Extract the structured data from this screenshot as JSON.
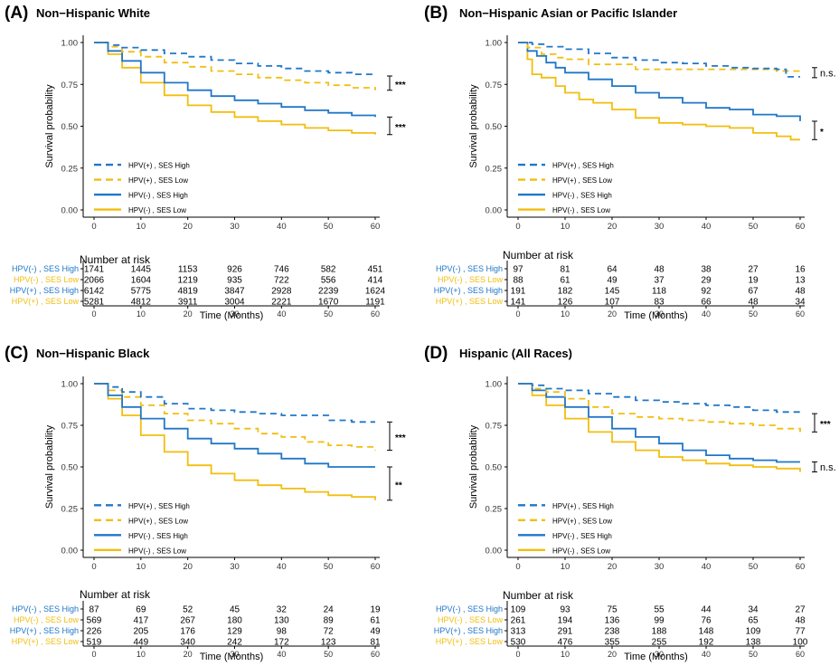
{
  "colors": {
    "ses_high": "#2077C8",
    "ses_low": "#F2BE0E",
    "axis": "#000000",
    "text": "#000000"
  },
  "chart_data": [
    {
      "type": "line",
      "panel_label": "(A)",
      "title": "Non−Hispanic White",
      "xlabel": "Time (Months)",
      "ylabel": "Survival probability",
      "xlim": [
        0,
        60
      ],
      "ylim": [
        0,
        1
      ],
      "x_ticks": [
        "0",
        "10",
        "20",
        "30",
        "40",
        "50",
        "60"
      ],
      "y_ticks": [
        "0.00",
        "0.25",
        "0.50",
        "0.75",
        "1.00"
      ],
      "series": [
        {
          "name": "HPV(+) , SES High",
          "color": "#2077C8",
          "dash": true,
          "x": [
            0,
            3,
            6,
            10,
            15,
            20,
            25,
            30,
            35,
            40,
            45,
            50,
            55,
            60
          ],
          "y": [
            1.0,
            0.985,
            0.97,
            0.955,
            0.935,
            0.915,
            0.895,
            0.875,
            0.86,
            0.845,
            0.83,
            0.82,
            0.81,
            0.8
          ]
        },
        {
          "name": "HPV(+) , SES Low",
          "color": "#F2BE0E",
          "dash": true,
          "x": [
            0,
            3,
            6,
            10,
            15,
            20,
            25,
            30,
            35,
            40,
            45,
            50,
            55,
            60
          ],
          "y": [
            1.0,
            0.975,
            0.945,
            0.915,
            0.88,
            0.855,
            0.83,
            0.81,
            0.79,
            0.775,
            0.76,
            0.745,
            0.73,
            0.715
          ]
        },
        {
          "name": "HPV(-) , SES High",
          "color": "#2077C8",
          "dash": false,
          "x": [
            0,
            3,
            6,
            10,
            15,
            20,
            25,
            30,
            35,
            40,
            45,
            50,
            55,
            60
          ],
          "y": [
            1.0,
            0.95,
            0.89,
            0.82,
            0.76,
            0.715,
            0.68,
            0.655,
            0.635,
            0.615,
            0.595,
            0.58,
            0.565,
            0.555
          ]
        },
        {
          "name": "HPV(-) , SES Low",
          "color": "#F2BE0E",
          "dash": false,
          "x": [
            0,
            3,
            6,
            10,
            15,
            20,
            25,
            30,
            35,
            40,
            45,
            50,
            55,
            60
          ],
          "y": [
            1.0,
            0.93,
            0.85,
            0.76,
            0.685,
            0.625,
            0.585,
            0.555,
            0.53,
            0.51,
            0.49,
            0.475,
            0.46,
            0.45
          ]
        }
      ],
      "legend": [
        "HPV(+) , SES High",
        "HPV(+) , SES Low",
        "HPV(-) , SES High",
        "HPV(-) , SES Low"
      ],
      "annotations": [
        {
          "text": "***",
          "y_top": 0.8,
          "y_bottom": 0.715
        },
        {
          "text": "***",
          "y_top": 0.555,
          "y_bottom": 0.45
        }
      ],
      "risk_table": {
        "title": "Number at risk",
        "rows": [
          {
            "label": "HPV(-) , SES High",
            "color": "#2077C8",
            "values": [
              "1741",
              "1445",
              "1153",
              "926",
              "746",
              "582",
              "451"
            ]
          },
          {
            "label": "HPV(-) , SES Low",
            "color": "#F2BE0E",
            "values": [
              "2066",
              "1604",
              "1219",
              "935",
              "722",
              "556",
              "414"
            ]
          },
          {
            "label": "HPV(+) , SES High",
            "color": "#2077C8",
            "values": [
              "6142",
              "5775",
              "4819",
              "3847",
              "2928",
              "2239",
              "1624"
            ]
          },
          {
            "label": "HPV(+) , SES Low",
            "color": "#F2BE0E",
            "values": [
              "5281",
              "4812",
              "3911",
              "3004",
              "2221",
              "1670",
              "1191"
            ]
          }
        ]
      }
    },
    {
      "type": "line",
      "panel_label": "(B)",
      "title": "Non−Hispanic Asian or Pacific Islander",
      "xlabel": "Time (Months)",
      "ylabel": "Survival probability",
      "xlim": [
        0,
        60
      ],
      "ylim": [
        0,
        1
      ],
      "x_ticks": [
        "0",
        "10",
        "20",
        "30",
        "40",
        "50",
        "60"
      ],
      "y_ticks": [
        "0.00",
        "0.25",
        "0.50",
        "0.75",
        "1.00"
      ],
      "series": [
        {
          "name": "HPV(+) , SES High",
          "color": "#2077C8",
          "dash": true,
          "x": [
            0,
            3,
            6,
            10,
            15,
            20,
            25,
            30,
            35,
            40,
            45,
            50,
            55,
            57,
            60
          ],
          "y": [
            1.0,
            0.99,
            0.975,
            0.96,
            0.935,
            0.91,
            0.895,
            0.88,
            0.875,
            0.86,
            0.85,
            0.845,
            0.84,
            0.795,
            0.795
          ]
        },
        {
          "name": "HPV(+) , SES Low",
          "color": "#F2BE0E",
          "dash": true,
          "x": [
            0,
            2,
            5,
            8,
            10,
            15,
            20,
            25,
            30,
            40,
            50,
            55,
            60
          ],
          "y": [
            1.0,
            0.97,
            0.93,
            0.91,
            0.9,
            0.87,
            0.87,
            0.84,
            0.84,
            0.84,
            0.84,
            0.83,
            0.81
          ]
        },
        {
          "name": "HPV(-) , SES High",
          "color": "#2077C8",
          "dash": false,
          "x": [
            0,
            2,
            4,
            6,
            8,
            10,
            15,
            20,
            25,
            30,
            35,
            40,
            45,
            50,
            55,
            60
          ],
          "y": [
            1.0,
            0.95,
            0.92,
            0.88,
            0.85,
            0.82,
            0.78,
            0.74,
            0.7,
            0.67,
            0.64,
            0.61,
            0.6,
            0.57,
            0.56,
            0.53
          ]
        },
        {
          "name": "HPV(-) , SES Low",
          "color": "#F2BE0E",
          "dash": false,
          "x": [
            0,
            2,
            3,
            5,
            8,
            10,
            13,
            16,
            20,
            25,
            30,
            35,
            40,
            45,
            50,
            55,
            58,
            60
          ],
          "y": [
            1.0,
            0.9,
            0.81,
            0.79,
            0.74,
            0.7,
            0.66,
            0.64,
            0.6,
            0.55,
            0.52,
            0.51,
            0.5,
            0.49,
            0.46,
            0.44,
            0.42,
            0.42
          ]
        }
      ],
      "legend": [
        "HPV(+) , SES High",
        "HPV(+) , SES Low",
        "HPV(-) , SES High",
        "HPV(-) , SES Low"
      ],
      "annotations": [
        {
          "text": "n.s.",
          "y_top": 0.85,
          "y_bottom": 0.79
        },
        {
          "text": "*",
          "y_top": 0.53,
          "y_bottom": 0.42
        }
      ],
      "risk_table": {
        "title": "Number at risk",
        "rows": [
          {
            "label": "HPV(-) , SES High",
            "color": "#2077C8",
            "values": [
              "97",
              "81",
              "64",
              "48",
              "38",
              "27",
              "16"
            ]
          },
          {
            "label": "HPV(-) , SES Low",
            "color": "#F2BE0E",
            "values": [
              "88",
              "61",
              "49",
              "37",
              "29",
              "19",
              "13"
            ]
          },
          {
            "label": "HPV(+) , SES High",
            "color": "#2077C8",
            "values": [
              "191",
              "182",
              "145",
              "118",
              "92",
              "67",
              "48"
            ]
          },
          {
            "label": "HPV(+) , SES Low",
            "color": "#F2BE0E",
            "values": [
              "141",
              "126",
              "107",
              "83",
              "66",
              "48",
              "34"
            ]
          }
        ]
      }
    },
    {
      "type": "line",
      "panel_label": "(C)",
      "title": "Non−Hispanic Black",
      "xlabel": "Time (Months)",
      "ylabel": "Survival probability",
      "xlim": [
        0,
        60
      ],
      "ylim": [
        0,
        1
      ],
      "x_ticks": [
        "0",
        "10",
        "20",
        "30",
        "40",
        "50",
        "60"
      ],
      "y_ticks": [
        "0.00",
        "0.25",
        "0.50",
        "0.75",
        "1.00"
      ],
      "series": [
        {
          "name": "HPV(+) , SES High",
          "color": "#2077C8",
          "dash": true,
          "x": [
            0,
            3,
            6,
            10,
            15,
            20,
            25,
            30,
            35,
            40,
            45,
            50,
            55,
            60
          ],
          "y": [
            1.0,
            0.98,
            0.95,
            0.92,
            0.88,
            0.85,
            0.84,
            0.83,
            0.82,
            0.81,
            0.81,
            0.78,
            0.77,
            0.77
          ]
        },
        {
          "name": "HPV(+) , SES Low",
          "color": "#F2BE0E",
          "dash": true,
          "x": [
            0,
            3,
            6,
            10,
            15,
            20,
            25,
            30,
            35,
            40,
            45,
            50,
            55,
            60
          ],
          "y": [
            1.0,
            0.96,
            0.92,
            0.87,
            0.82,
            0.78,
            0.76,
            0.73,
            0.7,
            0.68,
            0.65,
            0.63,
            0.62,
            0.6
          ]
        },
        {
          "name": "HPV(-) , SES High",
          "color": "#2077C8",
          "dash": false,
          "x": [
            0,
            3,
            6,
            10,
            15,
            20,
            25,
            30,
            35,
            40,
            45,
            50,
            55,
            60
          ],
          "y": [
            1.0,
            0.93,
            0.86,
            0.79,
            0.73,
            0.67,
            0.64,
            0.61,
            0.58,
            0.55,
            0.52,
            0.5,
            0.5,
            0.5
          ]
        },
        {
          "name": "HPV(-) , SES Low",
          "color": "#F2BE0E",
          "dash": false,
          "x": [
            0,
            3,
            6,
            10,
            15,
            20,
            25,
            30,
            35,
            40,
            45,
            50,
            55,
            60
          ],
          "y": [
            1.0,
            0.91,
            0.81,
            0.69,
            0.59,
            0.51,
            0.46,
            0.42,
            0.39,
            0.37,
            0.35,
            0.33,
            0.32,
            0.3
          ]
        }
      ],
      "legend": [
        "HPV(+) , SES High",
        "HPV(+) , SES Low",
        "HPV(-) , SES High",
        "HPV(-) , SES Low"
      ],
      "annotations": [
        {
          "text": "***",
          "y_top": 0.77,
          "y_bottom": 0.6
        },
        {
          "text": "**",
          "y_top": 0.5,
          "y_bottom": 0.3
        }
      ],
      "risk_table": {
        "title": "Number at risk",
        "rows": [
          {
            "label": "HPV(-) , SES High",
            "color": "#2077C8",
            "values": [
              "87",
              "69",
              "52",
              "45",
              "32",
              "24",
              "19"
            ]
          },
          {
            "label": "HPV(-) , SES Low",
            "color": "#F2BE0E",
            "values": [
              "569",
              "417",
              "267",
              "180",
              "130",
              "89",
              "61"
            ]
          },
          {
            "label": "HPV(+) , SES High",
            "color": "#2077C8",
            "values": [
              "226",
              "205",
              "176",
              "129",
              "98",
              "72",
              "49"
            ]
          },
          {
            "label": "HPV(+) , SES Low",
            "color": "#F2BE0E",
            "values": [
              "519",
              "449",
              "340",
              "242",
              "172",
              "123",
              "81"
            ]
          }
        ]
      }
    },
    {
      "type": "line",
      "panel_label": "(D)",
      "title": "Hispanic (All Races)",
      "xlabel": "Time (Months)",
      "ylabel": "Survival probability",
      "xlim": [
        0,
        60
      ],
      "ylim": [
        0,
        1
      ],
      "x_ticks": [
        "0",
        "10",
        "20",
        "30",
        "40",
        "50",
        "60"
      ],
      "y_ticks": [
        "0.00",
        "0.25",
        "0.50",
        "0.75",
        "1.00"
      ],
      "series": [
        {
          "name": "HPV(+) , SES High",
          "color": "#2077C8",
          "dash": true,
          "x": [
            0,
            3,
            6,
            10,
            15,
            20,
            25,
            30,
            35,
            40,
            45,
            50,
            55,
            60
          ],
          "y": [
            1.0,
            0.99,
            0.97,
            0.96,
            0.94,
            0.92,
            0.9,
            0.89,
            0.88,
            0.87,
            0.86,
            0.84,
            0.83,
            0.82
          ]
        },
        {
          "name": "HPV(+) , SES Low",
          "color": "#F2BE0E",
          "dash": true,
          "x": [
            0,
            3,
            6,
            10,
            15,
            20,
            25,
            30,
            35,
            40,
            45,
            50,
            55,
            60
          ],
          "y": [
            1.0,
            0.97,
            0.95,
            0.91,
            0.86,
            0.82,
            0.8,
            0.79,
            0.78,
            0.77,
            0.76,
            0.75,
            0.73,
            0.71
          ]
        },
        {
          "name": "HPV(-) , SES High",
          "color": "#2077C8",
          "dash": false,
          "x": [
            0,
            3,
            6,
            10,
            15,
            20,
            25,
            30,
            35,
            40,
            45,
            50,
            55,
            60
          ],
          "y": [
            1.0,
            0.96,
            0.92,
            0.86,
            0.8,
            0.73,
            0.68,
            0.64,
            0.6,
            0.57,
            0.55,
            0.54,
            0.53,
            0.53
          ]
        },
        {
          "name": "HPV(-) , SES Low",
          "color": "#F2BE0E",
          "dash": false,
          "x": [
            0,
            3,
            6,
            10,
            15,
            20,
            25,
            30,
            35,
            40,
            45,
            50,
            55,
            60
          ],
          "y": [
            1.0,
            0.93,
            0.87,
            0.79,
            0.71,
            0.65,
            0.6,
            0.56,
            0.54,
            0.52,
            0.51,
            0.5,
            0.49,
            0.47
          ]
        }
      ],
      "legend": [
        "HPV(+) , SES High",
        "HPV(+) , SES Low",
        "HPV(-) , SES High",
        "HPV(-) , SES Low"
      ],
      "annotations": [
        {
          "text": "***",
          "y_top": 0.82,
          "y_bottom": 0.71
        },
        {
          "text": "n.s.",
          "y_top": 0.53,
          "y_bottom": 0.47
        }
      ],
      "risk_table": {
        "title": "Number at risk",
        "rows": [
          {
            "label": "HPV(-) , SES High",
            "color": "#2077C8",
            "values": [
              "109",
              "93",
              "75",
              "55",
              "44",
              "34",
              "27"
            ]
          },
          {
            "label": "HPV(-) , SES Low",
            "color": "#F2BE0E",
            "values": [
              "261",
              "194",
              "136",
              "99",
              "76",
              "65",
              "48"
            ]
          },
          {
            "label": "HPV(+) , SES High",
            "color": "#2077C8",
            "values": [
              "313",
              "291",
              "238",
              "188",
              "148",
              "109",
              "77"
            ]
          },
          {
            "label": "HPV(+) , SES Low",
            "color": "#F2BE0E",
            "values": [
              "530",
              "476",
              "355",
              "255",
              "192",
              "138",
              "100"
            ]
          }
        ]
      }
    }
  ]
}
